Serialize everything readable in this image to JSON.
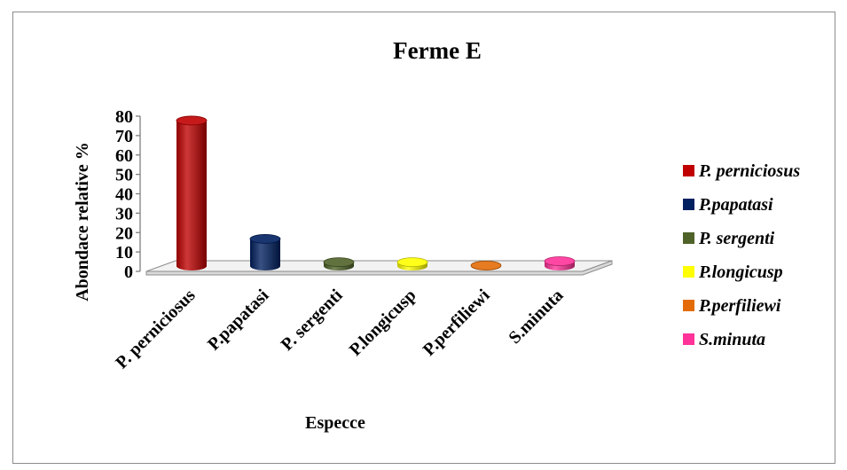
{
  "chart_data": {
    "type": "bar",
    "style": "3d-cylinder",
    "title": "Ferme E",
    "xlabel": "Especce",
    "ylabel": "Abondace  relative %",
    "ylim": [
      0,
      80
    ],
    "yticks": [
      "0",
      "10",
      "20",
      "30",
      "40",
      "50",
      "60",
      "70",
      "80"
    ],
    "grid": false,
    "legend_position": "right",
    "categories": [
      "P. perniciosus",
      "P.papatasi",
      "P. sergenti",
      "P.longicusp",
      "P.perfiliewi",
      "S.minuta"
    ],
    "legend": [
      "P. perniciosus",
      "P.papatasi",
      "P. sergenti",
      "P.longicusp",
      "P.perfiliewi",
      "S.minuta"
    ],
    "values": [
      75,
      14,
      2,
      2,
      0.3,
      2.5
    ],
    "colors": [
      "#c00000",
      "#002060",
      "#4f6228",
      "#ffff00",
      "#e36c09",
      "#ff3399"
    ]
  }
}
